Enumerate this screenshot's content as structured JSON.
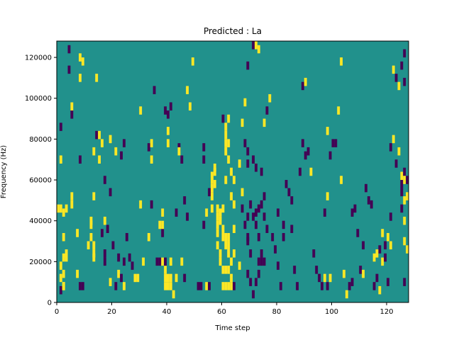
{
  "chart_data": {
    "type": "heatmap",
    "title": "Predicted : La",
    "xlabel": "Time step",
    "ylabel": "Frequency (Hz)",
    "xlim": [
      0,
      128
    ],
    "ylim": [
      0,
      128000
    ],
    "x_ticks": [
      0,
      20,
      40,
      60,
      80,
      100,
      120
    ],
    "y_ticks": [
      0,
      20000,
      40000,
      60000,
      80000,
      100000,
      120000
    ],
    "x_tick_labels": [
      "0",
      "20",
      "40",
      "60",
      "80",
      "100",
      "120"
    ],
    "y_tick_labels": [
      "0",
      "20000",
      "40000",
      "60000",
      "80000",
      "100000",
      "120000"
    ],
    "background_value": 0,
    "cell_height_hz": 4000,
    "colors": {
      "background": "#21918c",
      "high": "#fde725",
      "low": "#440154"
    },
    "cells": [
      [
        2,
        8000,
        -1
      ],
      [
        3,
        10000,
        1
      ],
      [
        3,
        10000,
        1
      ],
      [
        2,
        14000,
        1
      ],
      [
        3,
        16000,
        1
      ],
      [
        2,
        20000,
        1
      ],
      [
        3,
        24000,
        1
      ],
      [
        4,
        24000,
        1
      ],
      [
        3,
        34000,
        1
      ],
      [
        4,
        26000,
        1
      ],
      [
        3,
        46000,
        1
      ],
      [
        2,
        48000,
        1
      ],
      [
        4,
        48000,
        1
      ],
      [
        1,
        48000,
        1
      ],
      [
        6,
        50000,
        1
      ],
      [
        6,
        54000,
        1
      ],
      [
        2,
        72000,
        1
      ],
      [
        2,
        88000,
        -1
      ],
      [
        5,
        116000,
        -1
      ],
      [
        5,
        126000,
        -1
      ],
      [
        8,
        16000,
        1
      ],
      [
        9,
        10000,
        -1
      ],
      [
        10,
        10000,
        -1
      ],
      [
        9,
        112000,
        1
      ],
      [
        10,
        120000,
        1
      ],
      [
        9,
        122000,
        1
      ],
      [
        9,
        72000,
        -1
      ],
      [
        6,
        98000,
        1
      ],
      [
        6,
        94000,
        -1
      ],
      [
        8,
        36000,
        1
      ],
      [
        13,
        40000,
        1
      ],
      [
        12,
        30000,
        1
      ],
      [
        13,
        34000,
        1
      ],
      [
        14,
        24000,
        1
      ],
      [
        14,
        30000,
        1
      ],
      [
        14,
        26000,
        1
      ],
      [
        13,
        42000,
        1
      ],
      [
        14,
        54000,
        1
      ],
      [
        14,
        76000,
        1
      ],
      [
        15,
        84000,
        -1
      ],
      [
        16,
        84000,
        1
      ],
      [
        15,
        112000,
        1
      ],
      [
        16,
        72000,
        1
      ],
      [
        18,
        42000,
        1
      ],
      [
        17,
        36000,
        -1
      ],
      [
        18,
        22000,
        -1
      ],
      [
        18,
        26000,
        -1
      ],
      [
        18,
        62000,
        -1
      ],
      [
        20,
        56000,
        -1
      ],
      [
        20,
        12000,
        1
      ],
      [
        17,
        80000,
        1
      ],
      [
        19,
        38000,
        -1
      ],
      [
        20,
        82000,
        1
      ],
      [
        21,
        30000,
        -1
      ],
      [
        22,
        10000,
        -1
      ],
      [
        23,
        24000,
        -1
      ],
      [
        25,
        22000,
        -1
      ],
      [
        25,
        10000,
        1
      ],
      [
        22,
        76000,
        1
      ],
      [
        24,
        74000,
        -1
      ],
      [
        25,
        80000,
        -1
      ],
      [
        23,
        16000,
        1
      ],
      [
        24,
        14000,
        -1
      ],
      [
        26,
        34000,
        -1
      ],
      [
        27,
        24000,
        -1
      ],
      [
        28,
        20000,
        -1
      ],
      [
        29,
        14000,
        1
      ],
      [
        30,
        14000,
        1
      ],
      [
        31,
        50000,
        1
      ],
      [
        31,
        96000,
        1
      ],
      [
        32,
        22000,
        1
      ],
      [
        34,
        34000,
        1
      ],
      [
        34,
        78000,
        -1
      ],
      [
        35,
        72000,
        1
      ],
      [
        35,
        80000,
        1
      ],
      [
        36,
        106000,
        -1
      ],
      [
        35,
        50000,
        -1
      ],
      [
        37,
        22000,
        -1
      ],
      [
        38,
        22000,
        -1
      ],
      [
        39,
        22000,
        1
      ],
      [
        40,
        10000,
        1
      ],
      [
        40,
        14000,
        1
      ],
      [
        41,
        10000,
        1
      ],
      [
        41,
        14000,
        1
      ],
      [
        42,
        14000,
        1
      ],
      [
        42,
        10000,
        1
      ],
      [
        40,
        18000,
        1
      ],
      [
        40,
        96000,
        -1
      ],
      [
        41,
        94000,
        -1
      ],
      [
        41,
        80000,
        1
      ],
      [
        39,
        36000,
        -1
      ],
      [
        38,
        40000,
        1
      ],
      [
        39,
        46000,
        1
      ],
      [
        39,
        40000,
        1
      ],
      [
        40,
        22000,
        -1
      ],
      [
        41,
        86000,
        1
      ],
      [
        42,
        98000,
        -1
      ],
      [
        43,
        6000,
        1
      ],
      [
        42,
        22000,
        1
      ],
      [
        44,
        14000,
        1
      ],
      [
        46,
        22000,
        1
      ],
      [
        47,
        14000,
        -1
      ],
      [
        45,
        78000,
        -1
      ],
      [
        46,
        72000,
        -1
      ],
      [
        45,
        76000,
        1
      ],
      [
        44,
        46000,
        -1
      ],
      [
        48,
        106000,
        1
      ],
      [
        47,
        52000,
        -1
      ],
      [
        48,
        44000,
        -1
      ],
      [
        50,
        120000,
        1
      ],
      [
        49,
        98000,
        1
      ],
      [
        52,
        10000,
        -1
      ],
      [
        53,
        10000,
        -1
      ],
      [
        55,
        10000,
        1
      ],
      [
        56,
        10000,
        -1
      ],
      [
        54,
        78000,
        -1
      ],
      [
        54,
        72000,
        -1
      ],
      [
        54,
        40000,
        -1
      ],
      [
        55,
        46000,
        1
      ],
      [
        56,
        56000,
        -1
      ],
      [
        57,
        48000,
        1
      ],
      [
        57,
        54000,
        1
      ],
      [
        57,
        58000,
        1
      ],
      [
        57,
        62000,
        1
      ],
      [
        57,
        64000,
        1
      ],
      [
        58,
        66000,
        1
      ],
      [
        58,
        60000,
        1
      ],
      [
        58,
        68000,
        1
      ],
      [
        59,
        48000,
        1
      ],
      [
        59,
        44000,
        1
      ],
      [
        59,
        40000,
        1
      ],
      [
        59,
        36000,
        1
      ],
      [
        59,
        30000,
        1
      ],
      [
        60,
        26000,
        1
      ],
      [
        60,
        22000,
        1
      ],
      [
        60,
        42000,
        1
      ],
      [
        60,
        46000,
        1
      ],
      [
        61,
        48000,
        1
      ],
      [
        61,
        38000,
        1
      ],
      [
        61,
        34000,
        1
      ],
      [
        62,
        34000,
        1
      ],
      [
        62,
        30000,
        1
      ],
      [
        63,
        26000,
        1
      ],
      [
        63,
        30000,
        1
      ],
      [
        63,
        34000,
        1
      ],
      [
        62,
        18000,
        1
      ],
      [
        63,
        18000,
        1
      ],
      [
        61,
        18000,
        1
      ],
      [
        61,
        10000,
        1
      ],
      [
        62,
        10000,
        1
      ],
      [
        63,
        10000,
        1
      ],
      [
        64,
        10000,
        1
      ],
      [
        64,
        14000,
        1
      ],
      [
        65,
        10000,
        -1
      ],
      [
        64,
        22000,
        1
      ],
      [
        65,
        26000,
        1
      ],
      [
        65,
        38000,
        1
      ],
      [
        65,
        50000,
        1
      ],
      [
        64,
        66000,
        1
      ],
      [
        63,
        72000,
        1
      ],
      [
        62,
        76000,
        1
      ],
      [
        62,
        84000,
        1
      ],
      [
        62,
        88000,
        1
      ],
      [
        61,
        92000,
        -1
      ],
      [
        63,
        92000,
        1
      ],
      [
        63,
        80000,
        1
      ],
      [
        62,
        80000,
        1
      ],
      [
        62,
        62000,
        1
      ],
      [
        64,
        54000,
        1
      ],
      [
        65,
        62000,
        1
      ],
      [
        67,
        20000,
        1
      ],
      [
        67,
        70000,
        1
      ],
      [
        68,
        56000,
        1
      ],
      [
        68,
        48000,
        -1
      ],
      [
        69,
        40000,
        -1
      ],
      [
        70,
        32000,
        -1
      ],
      [
        71,
        26000,
        -1
      ],
      [
        70,
        44000,
        -1
      ],
      [
        71,
        50000,
        -1
      ],
      [
        70,
        34000,
        -1
      ],
      [
        70,
        16000,
        -1
      ],
      [
        71,
        12000,
        -1
      ],
      [
        72,
        6000,
        -1
      ],
      [
        73,
        12000,
        -1
      ],
      [
        74,
        16000,
        -1
      ],
      [
        74,
        22000,
        -1
      ],
      [
        75,
        22000,
        -1
      ],
      [
        76,
        22000,
        -1
      ],
      [
        75,
        26000,
        -1
      ],
      [
        74,
        34000,
        -1
      ],
      [
        73,
        40000,
        -1
      ],
      [
        72,
        44000,
        -1
      ],
      [
        73,
        46000,
        -1
      ],
      [
        74,
        48000,
        -1
      ],
      [
        75,
        50000,
        -1
      ],
      [
        76,
        44000,
        -1
      ],
      [
        77,
        38000,
        -1
      ],
      [
        76,
        54000,
        -1
      ],
      [
        75,
        66000,
        -1
      ],
      [
        73,
        68000,
        -1
      ],
      [
        72,
        72000,
        -1
      ],
      [
        70,
        70000,
        -1
      ],
      [
        70,
        76000,
        -1
      ],
      [
        69,
        80000,
        -1
      ],
      [
        68,
        90000,
        1
      ],
      [
        69,
        100000,
        1
      ],
      [
        70,
        118000,
        -1
      ],
      [
        72,
        128000,
        -1
      ],
      [
        73,
        128000,
        1
      ],
      [
        74,
        126000,
        1
      ],
      [
        76,
        90000,
        1
      ],
      [
        77,
        96000,
        -1
      ],
      [
        78,
        102000,
        1
      ],
      [
        79,
        34000,
        -1
      ],
      [
        80,
        28000,
        -1
      ],
      [
        81,
        20000,
        -1
      ],
      [
        82,
        10000,
        -1
      ],
      [
        81,
        46000,
        -1
      ],
      [
        83,
        40000,
        -1
      ],
      [
        83,
        34000,
        -1
      ],
      [
        84,
        60000,
        -1
      ],
      [
        85,
        56000,
        -1
      ],
      [
        86,
        52000,
        -1
      ],
      [
        86,
        38000,
        -1
      ],
      [
        87,
        18000,
        -1
      ],
      [
        88,
        10000,
        -1
      ],
      [
        89,
        66000,
        -1
      ],
      [
        90,
        80000,
        -1
      ],
      [
        91,
        74000,
        -1
      ],
      [
        92,
        76000,
        -1
      ],
      [
        90,
        108000,
        -1
      ],
      [
        91,
        110000,
        1
      ],
      [
        93,
        66000,
        1
      ],
      [
        94,
        26000,
        -1
      ],
      [
        95,
        18000,
        -1
      ],
      [
        96,
        14000,
        -1
      ],
      [
        97,
        10000,
        -1
      ],
      [
        98,
        14000,
        1
      ],
      [
        99,
        10000,
        -1
      ],
      [
        100,
        14000,
        1
      ],
      [
        99,
        54000,
        1
      ],
      [
        98,
        46000,
        -1
      ],
      [
        99,
        86000,
        1
      ],
      [
        100,
        74000,
        -1
      ],
      [
        101,
        80000,
        -1
      ],
      [
        102,
        80000,
        -1
      ],
      [
        103,
        96000,
        1
      ],
      [
        104,
        62000,
        1
      ],
      [
        104,
        120000,
        1
      ],
      [
        105,
        16000,
        1
      ],
      [
        106,
        6000,
        1
      ],
      [
        107,
        10000,
        -1
      ],
      [
        108,
        12000,
        -1
      ],
      [
        108,
        46000,
        -1
      ],
      [
        109,
        48000,
        -1
      ],
      [
        110,
        36000,
        -1
      ],
      [
        111,
        18000,
        -1
      ],
      [
        112,
        16000,
        1
      ],
      [
        112,
        30000,
        -1
      ],
      [
        113,
        58000,
        -1
      ],
      [
        114,
        52000,
        -1
      ],
      [
        115,
        50000,
        -1
      ],
      [
        116,
        10000,
        -1
      ],
      [
        117,
        14000,
        -1
      ],
      [
        118,
        8000,
        1
      ],
      [
        119,
        22000,
        1
      ],
      [
        120,
        24000,
        -1
      ],
      [
        121,
        12000,
        -1
      ],
      [
        122,
        44000,
        -1
      ],
      [
        122,
        78000,
        -1
      ],
      [
        123,
        82000,
        1
      ],
      [
        124,
        70000,
        -1
      ],
      [
        125,
        76000,
        1
      ],
      [
        126,
        60000,
        -1
      ],
      [
        126,
        64000,
        1
      ],
      [
        127,
        66000,
        -1
      ],
      [
        127,
        62000,
        1
      ],
      [
        127,
        12000,
        -1
      ],
      [
        127,
        52000,
        1
      ],
      [
        126,
        56000,
        -1
      ],
      [
        125,
        108000,
        1
      ],
      [
        124,
        112000,
        -1
      ],
      [
        123,
        116000,
        1
      ],
      [
        126,
        118000,
        -1
      ],
      [
        127,
        124000,
        -1
      ],
      [
        127,
        110000,
        -1
      ],
      [
        128,
        54000,
        1
      ],
      [
        128,
        62000,
        -1
      ],
      [
        127,
        42000,
        1
      ],
      [
        126,
        48000,
        -1
      ],
      [
        121,
        34000,
        1
      ],
      [
        122,
        30000,
        1
      ],
      [
        120,
        30000,
        -1
      ],
      [
        119,
        36000,
        1
      ],
      [
        118,
        28000,
        -1
      ],
      [
        117,
        26000,
        1
      ],
      [
        116,
        24000,
        1
      ],
      [
        127,
        32000,
        1
      ],
      [
        128,
        28000,
        1
      ]
    ]
  }
}
